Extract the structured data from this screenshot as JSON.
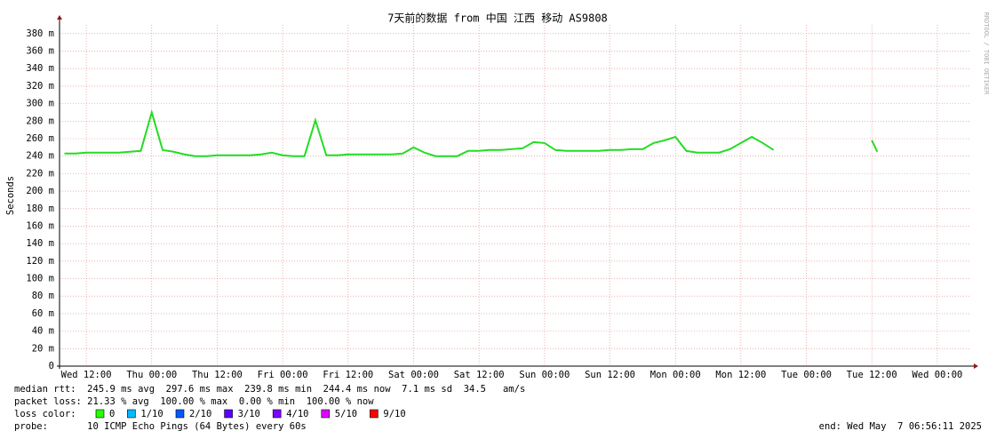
{
  "chart_data": {
    "type": "line",
    "title": "7天前的数据 from 中国 江西 移动 AS9808",
    "y_label": "Seconds",
    "watermark": "RRDTOOL / TOBI OETIKER",
    "color": "#22dd22",
    "grid": true,
    "xlim": [
      7.1,
      174.2
    ],
    "xticks": [
      {
        "value": 12,
        "label": "Wed 12:00"
      },
      {
        "value": 24,
        "label": "Thu 00:00"
      },
      {
        "value": 36,
        "label": "Thu 12:00"
      },
      {
        "value": 48,
        "label": "Fri 00:00"
      },
      {
        "value": 60,
        "label": "Fri 12:00"
      },
      {
        "value": 72,
        "label": "Sat 00:00"
      },
      {
        "value": 84,
        "label": "Sat 12:00"
      },
      {
        "value": 96,
        "label": "Sun 00:00"
      },
      {
        "value": 108,
        "label": "Sun 12:00"
      },
      {
        "value": 120,
        "label": "Mon 00:00"
      },
      {
        "value": 132,
        "label": "Mon 12:00"
      },
      {
        "value": 144,
        "label": "Tue 00:00"
      },
      {
        "value": 156,
        "label": "Tue 12:00"
      },
      {
        "value": 168,
        "label": "Wed 00:00"
      }
    ],
    "ylim": [
      0,
      0.39
    ],
    "yticks": [
      0,
      {
        "value": 0.02,
        "label": "20 m"
      },
      {
        "value": 0.04,
        "label": "40 m"
      },
      {
        "value": 0.06,
        "label": "60 m"
      },
      {
        "value": 0.08,
        "label": "80 m"
      },
      {
        "value": 0.1,
        "label": "100 m"
      },
      {
        "value": 0.12,
        "label": "120 m"
      },
      {
        "value": 0.14,
        "label": "140 m"
      },
      {
        "value": 0.16,
        "label": "160 m"
      },
      {
        "value": 0.18,
        "label": "180 m"
      },
      {
        "value": 0.2,
        "label": "200 m"
      },
      {
        "value": 0.22,
        "label": "220 m"
      },
      {
        "value": 0.24,
        "label": "240 m"
      },
      {
        "value": 0.26,
        "label": "260 m"
      },
      {
        "value": 0.28,
        "label": "280 m"
      },
      {
        "value": 0.3,
        "label": "300 m"
      },
      {
        "value": 0.32,
        "label": "320 m"
      },
      {
        "value": 0.34,
        "label": "340 m"
      },
      {
        "value": 0.36,
        "label": "360 m"
      },
      {
        "value": 0.38,
        "label": "380 m"
      }
    ],
    "x": [
      8,
      10,
      12,
      14,
      16,
      18,
      20,
      22,
      24,
      26,
      28,
      30,
      32,
      34,
      36,
      38,
      40,
      42,
      44,
      46,
      48,
      50,
      52,
      54,
      56,
      58,
      60,
      62,
      64,
      66,
      68,
      70,
      72,
      74,
      76,
      78,
      80,
      82,
      84,
      86,
      88,
      90,
      92,
      94,
      96,
      98,
      100,
      102,
      104,
      106,
      108,
      110,
      112,
      114,
      116,
      118,
      120,
      122,
      124,
      126,
      128,
      130,
      132,
      134,
      136,
      138,
      147,
      156,
      157
    ],
    "values": [
      0.243,
      0.243,
      0.244,
      0.244,
      0.244,
      0.244,
      0.245,
      0.246,
      0.29,
      0.247,
      0.245,
      0.242,
      0.24,
      0.24,
      0.241,
      0.241,
      0.241,
      0.241,
      0.242,
      0.244,
      0.241,
      0.24,
      0.24,
      0.281,
      0.241,
      0.241,
      0.242,
      0.242,
      0.242,
      0.242,
      0.242,
      0.243,
      0.25,
      0.244,
      0.24,
      0.24,
      0.24,
      0.246,
      0.246,
      0.247,
      0.247,
      0.248,
      0.249,
      0.256,
      0.255,
      0.247,
      0.246,
      0.246,
      0.246,
      0.246,
      0.247,
      0.247,
      0.248,
      0.248,
      0.255,
      0.258,
      0.262,
      0.246,
      0.244,
      0.244,
      0.244,
      0.248,
      0.255,
      0.262,
      0.255,
      0.247,
      null,
      0.258,
      0.245
    ]
  },
  "footer": {
    "median_rtt": "median rtt:  245.9 ms avg  297.6 ms max  239.8 ms min  244.4 ms now  7.1 ms sd  34.5   am/s",
    "packet_loss": "packet loss: 21.33 % avg  100.00 % max  0.00 % min  100.00 % now",
    "loss_color_label": "loss color:",
    "loss_colors": [
      {
        "label": "0",
        "color": "#26ff00"
      },
      {
        "label": "1/10",
        "color": "#00b8ff"
      },
      {
        "label": "2/10",
        "color": "#0059ff"
      },
      {
        "label": "3/10",
        "color": "#5e00ff"
      },
      {
        "label": "4/10",
        "color": "#7e00ff"
      },
      {
        "label": "5/10",
        "color": "#dd00ff"
      },
      {
        "label": "9/10",
        "color": "#ff0000"
      }
    ],
    "probe": "probe:       10 ICMP Echo Pings (64 Bytes) every 60s",
    "end": "end: Wed May  7 06:56:11 2025"
  }
}
